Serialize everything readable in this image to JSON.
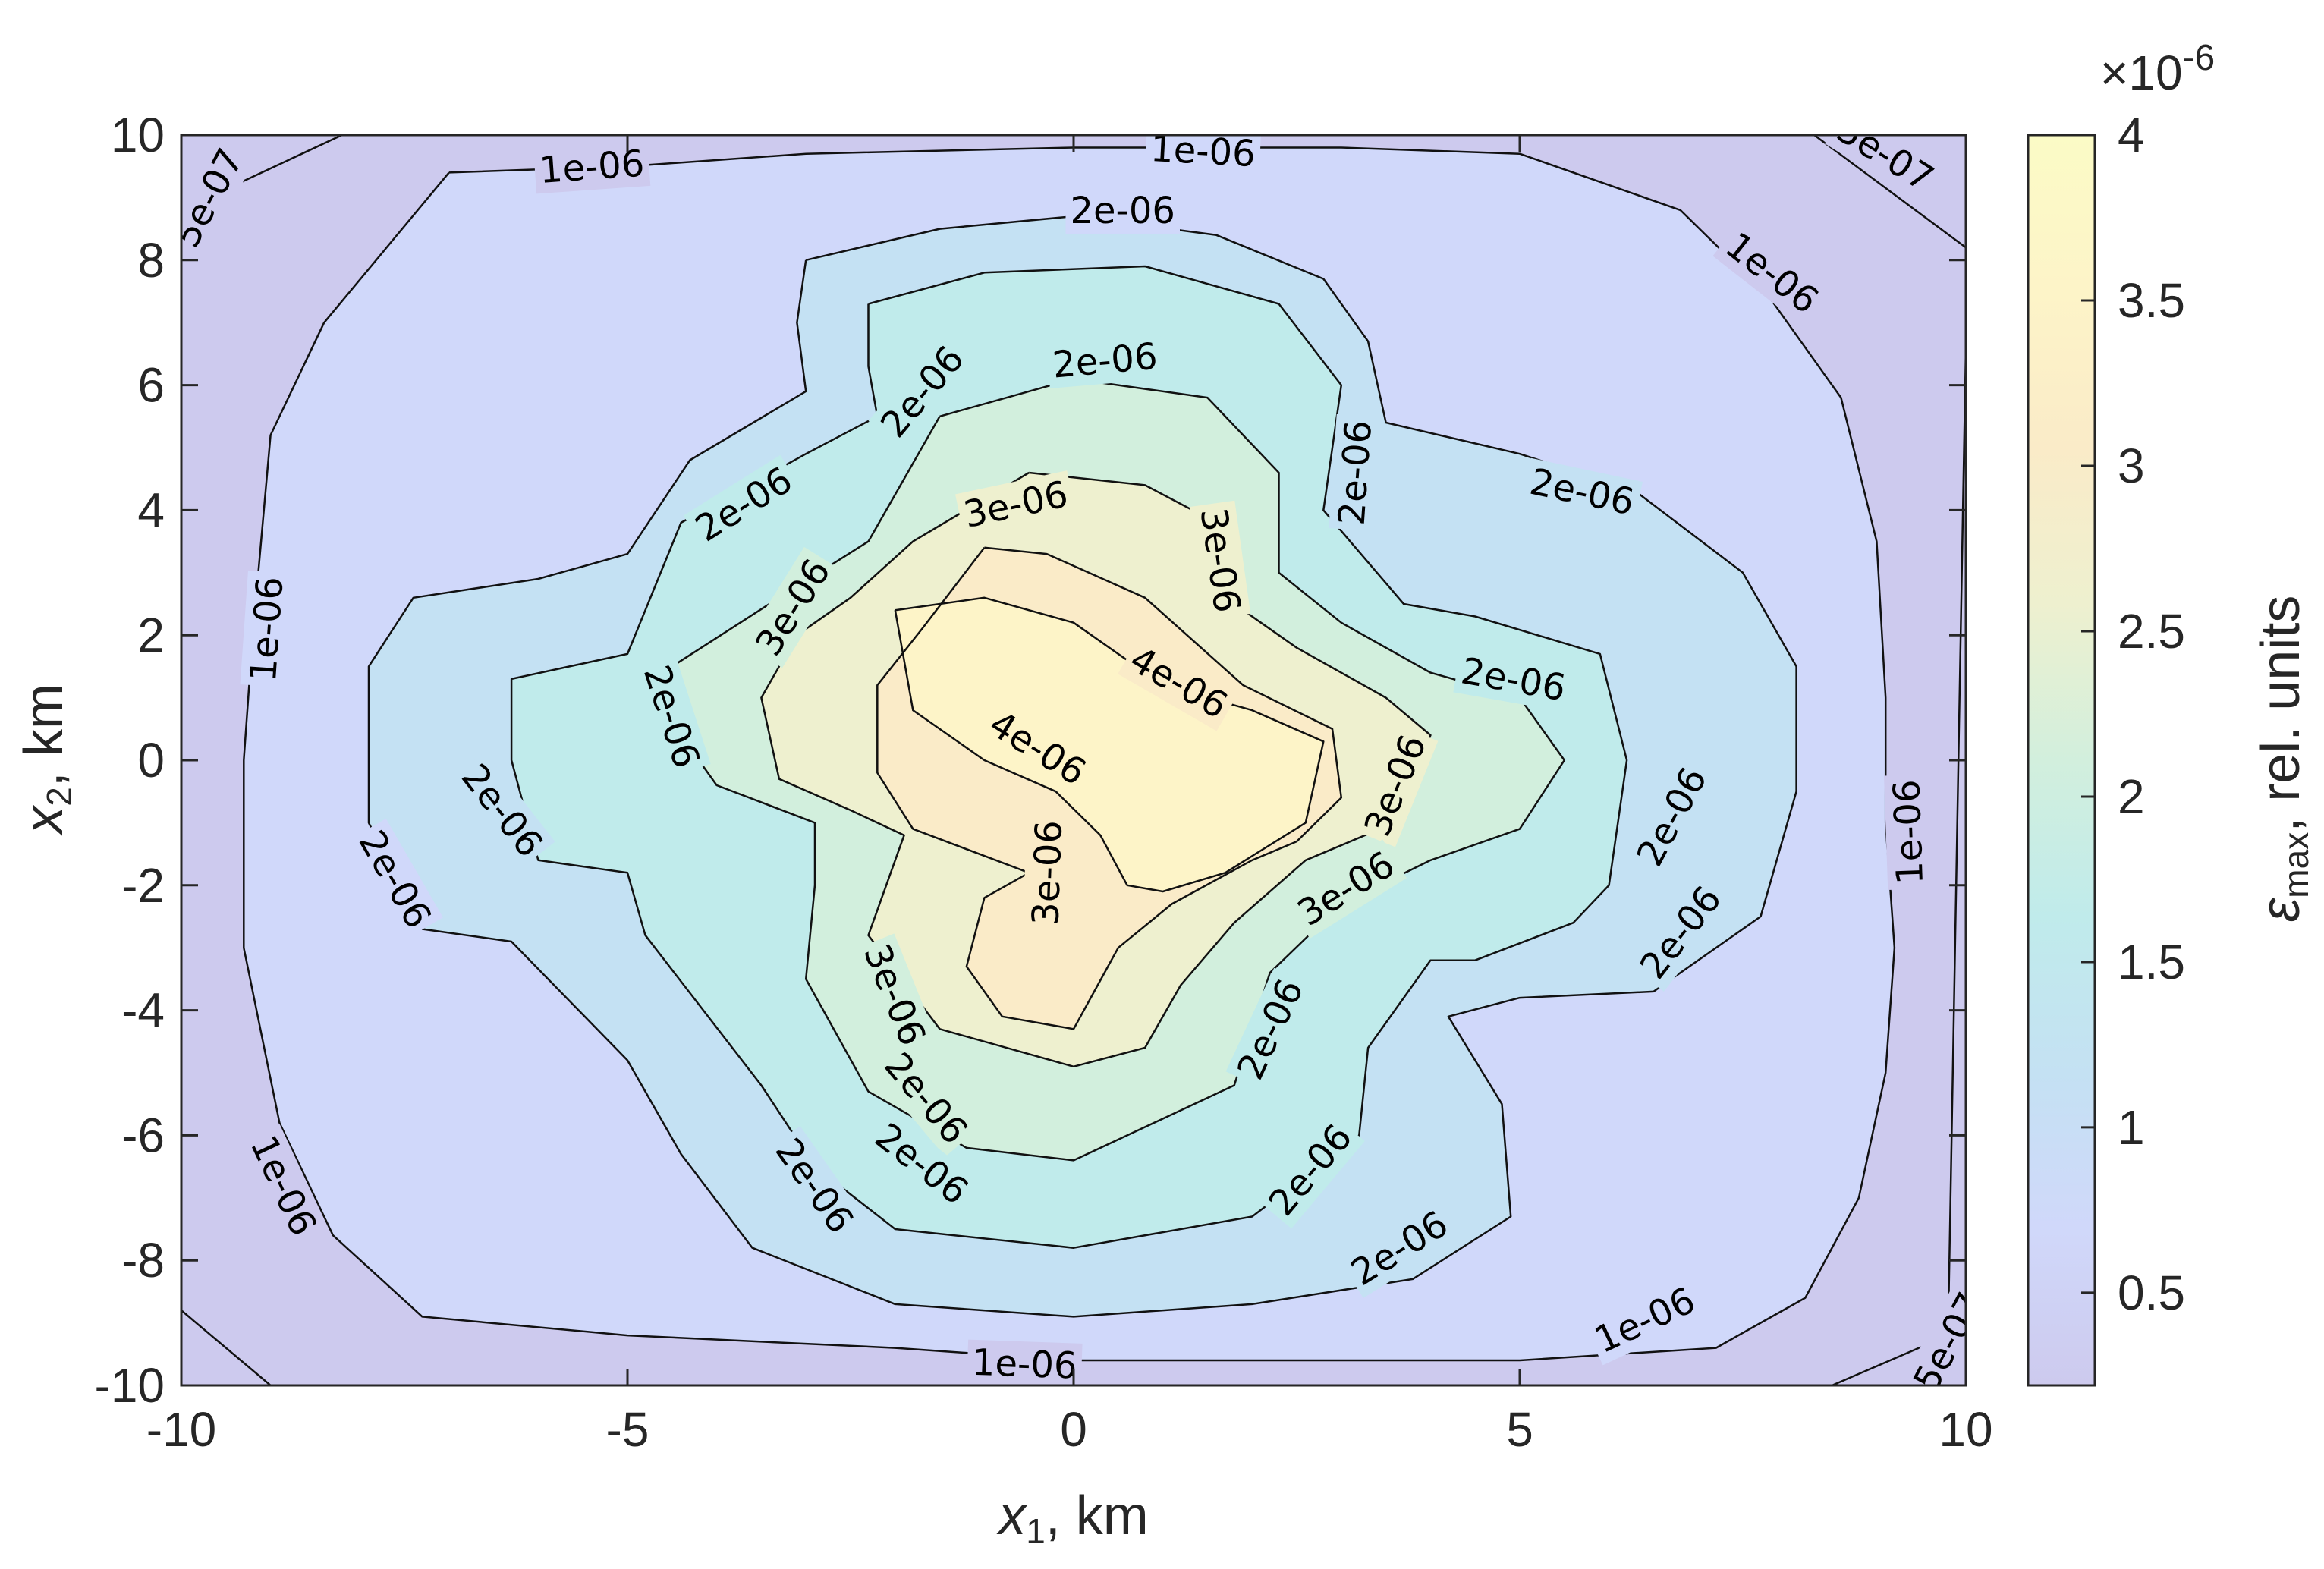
{
  "chart_data": {
    "type": "contour",
    "xlabel": {
      "symbol": "x",
      "sub": "1",
      "unit": ", km"
    },
    "ylabel": {
      "symbol": "x",
      "sub": "2",
      "unit": ", km"
    },
    "xlim": [
      -10,
      10
    ],
    "ylim": [
      -10,
      10
    ],
    "xticks": [
      -10,
      -5,
      0,
      5,
      10
    ],
    "yticks": [
      -10,
      -8,
      -6,
      -4,
      -2,
      0,
      2,
      4,
      6,
      8,
      10
    ],
    "xtick_labels": [
      "-10",
      "-5",
      "0",
      "5",
      "10"
    ],
    "ytick_labels": [
      "-10",
      "-8",
      "-6",
      "-4",
      "-2",
      "0",
      "2",
      "4",
      "6",
      "8",
      "10"
    ],
    "colorbar": {
      "label": {
        "symbol": "ε",
        "sub": "max",
        "unit": ", rel. units"
      },
      "exponent_label": "×10",
      "exponent": "-6",
      "range": [
        0.22,
        4.0
      ],
      "ticks": [
        0.5,
        1,
        1.5,
        2,
        2.5,
        3,
        3.5,
        4
      ],
      "tick_labels": [
        "0.5",
        "1",
        "1.5",
        "2",
        "2.5",
        "3",
        "3.5",
        "4"
      ],
      "colormap": [
        "#cdcaee",
        "#d0d8fa",
        "#c4e1f3",
        "#c0ebeb",
        "#d2efdd",
        "#eef0cf",
        "#faebc8",
        "#fdf4c8",
        "#fbfbc6"
      ]
    },
    "levels": [
      5e-07,
      1e-06,
      1.5e-06,
      2e-06,
      2.5e-06,
      3e-06,
      3.5e-06,
      4e-06
    ],
    "fill_colors": [
      "#d0d8fa",
      "#c4e1f3",
      "#c0ebeb",
      "#d2efdd",
      "#eef0cf",
      "#faebc8",
      "#fdf4c8"
    ],
    "background_color": "#cdcaee",
    "contours": [
      {
        "level": "5e-07",
        "points": [
          [
            -10,
            8.8
          ],
          [
            -8.2,
            10
          ]
        ]
      },
      {
        "level": "5e-07",
        "points": [
          [
            8.3,
            10
          ],
          [
            10,
            8.2
          ]
        ]
      },
      {
        "level": "5e-07",
        "points": [
          [
            10,
            6.6
          ],
          [
            9.8,
            -9.2
          ],
          [
            8.5,
            -10
          ]
        ]
      },
      {
        "level": "5e-07",
        "points": [
          [
            -10,
            -8.8
          ],
          [
            -9,
            -10
          ]
        ]
      },
      {
        "level": "1e-06",
        "points": [
          [
            -7,
            9.4
          ],
          [
            -5,
            9.5
          ],
          [
            -3,
            9.7
          ],
          [
            0,
            9.8
          ],
          [
            3,
            9.8
          ],
          [
            5,
            9.7
          ],
          [
            6.8,
            8.8
          ],
          [
            7.8,
            7.4
          ],
          [
            8.6,
            5.8
          ],
          [
            9,
            3.5
          ],
          [
            9.1,
            1
          ],
          [
            9.1,
            -1
          ],
          [
            9.2,
            -3
          ],
          [
            9.1,
            -5
          ],
          [
            8.8,
            -7
          ],
          [
            8.2,
            -8.6
          ],
          [
            7.2,
            -9.4
          ],
          [
            5,
            -9.6
          ],
          [
            2,
            -9.6
          ],
          [
            0,
            -9.6
          ],
          [
            -2,
            -9.4
          ],
          [
            -5,
            -9.2
          ],
          [
            -7.3,
            -8.9
          ],
          [
            -8.3,
            -7.6
          ],
          [
            -8.9,
            -5.8
          ],
          [
            -9.3,
            -3
          ],
          [
            -9.3,
            0
          ],
          [
            -9.2,
            2
          ],
          [
            -9,
            5.2
          ],
          [
            -8.4,
            7
          ],
          [
            -7,
            9.4
          ]
        ]
      },
      {
        "level": "1.5e-06",
        "points": [
          [
            -3,
            8
          ],
          [
            -1.5,
            8.5
          ],
          [
            0,
            8.7
          ],
          [
            1.6,
            8.4
          ],
          [
            2.8,
            7.7
          ],
          [
            3.3,
            6.7
          ],
          [
            3.5,
            5.4
          ],
          [
            5,
            4.9
          ],
          [
            6.3,
            4.3
          ],
          [
            7.5,
            3
          ],
          [
            8.1,
            1.5
          ],
          [
            8.1,
            -0.5
          ],
          [
            7.7,
            -2.5
          ],
          [
            6.5,
            -3.7
          ],
          [
            5,
            -3.8
          ],
          [
            4.2,
            -4.1
          ],
          [
            4.8,
            -5.5
          ],
          [
            4.9,
            -7.3
          ],
          [
            3.8,
            -8.3
          ],
          [
            2,
            -8.7
          ],
          [
            0,
            -8.9
          ],
          [
            -2,
            -8.7
          ],
          [
            -3.6,
            -7.8
          ],
          [
            -4.4,
            -6.3
          ],
          [
            -5,
            -4.8
          ],
          [
            -6.3,
            -2.9
          ],
          [
            -7.3,
            -2.7
          ],
          [
            -7.9,
            -1
          ],
          [
            -7.9,
            1.5
          ],
          [
            -7.4,
            2.6
          ],
          [
            -6,
            2.9
          ],
          [
            -5,
            3.3
          ],
          [
            -4.3,
            4.8
          ],
          [
            -3,
            5.9
          ],
          [
            -3.1,
            7
          ],
          [
            -3,
            8
          ]
        ]
      },
      {
        "level": "2e-06",
        "points": [
          [
            -2.3,
            7.3
          ],
          [
            -1,
            7.8
          ],
          [
            0.8,
            7.9
          ],
          [
            2.3,
            7.3
          ],
          [
            3,
            6
          ],
          [
            2.8,
            4
          ],
          [
            3.7,
            2.5
          ],
          [
            4.5,
            2.3
          ],
          [
            5.9,
            1.7
          ],
          [
            6.2,
            0
          ],
          [
            6,
            -2
          ],
          [
            5.6,
            -2.6
          ],
          [
            4.5,
            -3.2
          ],
          [
            4,
            -3.2
          ],
          [
            3.3,
            -4.6
          ],
          [
            3.2,
            -6
          ],
          [
            2,
            -7.3
          ],
          [
            0,
            -7.8
          ],
          [
            -2,
            -7.5
          ],
          [
            -2.9,
            -6.5
          ],
          [
            -3.5,
            -5.2
          ],
          [
            -4.8,
            -2.8
          ],
          [
            -5,
            -1.8
          ],
          [
            -6,
            -1.6
          ],
          [
            -6.3,
            0
          ],
          [
            -6.3,
            1.3
          ],
          [
            -5,
            1.7
          ],
          [
            -4.4,
            3.8
          ],
          [
            -3,
            4.9
          ],
          [
            -2.2,
            5.5
          ],
          [
            -2.3,
            6.3
          ],
          [
            -2.3,
            7.3
          ]
        ]
      },
      {
        "level": "2.5e-06",
        "points": [
          [
            -1.5,
            5.5
          ],
          [
            0,
            6.1
          ],
          [
            1.5,
            5.8
          ],
          [
            2.3,
            4.6
          ],
          [
            2.3,
            3
          ],
          [
            3,
            2.2
          ],
          [
            4,
            1.4
          ],
          [
            5,
            1
          ],
          [
            5.5,
            0
          ],
          [
            5,
            -1.1
          ],
          [
            4,
            -1.6
          ],
          [
            3,
            -2.3
          ],
          [
            2.2,
            -3.4
          ],
          [
            1.8,
            -5.2
          ],
          [
            0,
            -6.4
          ],
          [
            -1.2,
            -6.2
          ],
          [
            -2.3,
            -5.3
          ],
          [
            -3,
            -3.5
          ],
          [
            -2.9,
            -2
          ],
          [
            -2.9,
            -1
          ],
          [
            -4,
            -0.4
          ],
          [
            -4.4,
            0.4
          ],
          [
            -4.5,
            1.5
          ],
          [
            -3.3,
            2.6
          ],
          [
            -2.3,
            3.5
          ],
          [
            -1.5,
            5.5
          ]
        ]
      },
      {
        "level": "3e-06",
        "points": [
          [
            -0.5,
            4.6
          ],
          [
            0.8,
            4.4
          ],
          [
            1.6,
            3.8
          ],
          [
            1.8,
            2.5
          ],
          [
            2.5,
            1.8
          ],
          [
            3.5,
            1
          ],
          [
            4,
            0.4
          ],
          [
            3.6,
            -1
          ],
          [
            2.6,
            -1.6
          ],
          [
            1.8,
            -2.6
          ],
          [
            1.2,
            -3.6
          ],
          [
            0.8,
            -4.6
          ],
          [
            0,
            -4.9
          ],
          [
            -1.5,
            -4.3
          ],
          [
            -2.3,
            -2.8
          ],
          [
            -1.9,
            -1.2
          ],
          [
            -2.5,
            -0.8
          ],
          [
            -3.3,
            -0.3
          ],
          [
            -3.5,
            1
          ],
          [
            -3.1,
            2
          ],
          [
            -2.5,
            2.6
          ],
          [
            -1.8,
            3.5
          ],
          [
            -0.5,
            4.6
          ]
        ]
      },
      {
        "level": "3.5e-06",
        "points": [
          [
            -1,
            3.4
          ],
          [
            -0.3,
            3.3
          ],
          [
            0.8,
            2.6
          ],
          [
            1.9,
            1.2
          ],
          [
            2.9,
            0.5
          ],
          [
            3,
            -0.6
          ],
          [
            2.5,
            -1.3
          ],
          [
            2,
            -1.6
          ],
          [
            1.1,
            -2.3
          ],
          [
            0.5,
            -3
          ],
          [
            0,
            -4.3
          ],
          [
            -0.8,
            -4.1
          ],
          [
            -1.2,
            -3.3
          ],
          [
            -1,
            -2.2
          ],
          [
            -0.5,
            -1.8
          ],
          [
            -1.8,
            -1.1
          ],
          [
            -2.2,
            -0.2
          ],
          [
            -2.2,
            1.2
          ],
          [
            -1.7,
            2.1
          ],
          [
            -1,
            3.4
          ]
        ]
      },
      {
        "level": "4e-06",
        "points": [
          [
            -2,
            2.4
          ],
          [
            -1,
            2.6
          ],
          [
            0,
            2.2
          ],
          [
            1,
            1.2
          ],
          [
            2,
            0.8
          ],
          [
            2.8,
            0.3
          ],
          [
            2.6,
            -1
          ],
          [
            1.7,
            -1.8
          ],
          [
            1,
            -2.1
          ],
          [
            0.6,
            -2
          ],
          [
            0.3,
            -1.2
          ],
          [
            -0.2,
            -0.5
          ],
          [
            -1,
            0
          ],
          [
            -1.8,
            0.8
          ],
          [
            -2,
            2.4
          ]
        ]
      }
    ],
    "contour_labels": [
      {
        "text": "5e-07",
        "x": -9.7,
        "y": 9.0,
        "angle": -62
      },
      {
        "text": "5e-07",
        "x": 9.1,
        "y": 9.7,
        "angle": 32
      },
      {
        "text": "5e-07",
        "x": 9.8,
        "y": -9.3,
        "angle": -62
      },
      {
        "text": "1e-06",
        "x": -5.4,
        "y": 9.5,
        "angle": -4
      },
      {
        "text": "1e-06",
        "x": 1.45,
        "y": 9.75,
        "angle": 3
      },
      {
        "text": "1e-06",
        "x": 7.83,
        "y": 7.8,
        "angle": 38
      },
      {
        "text": "1e-06",
        "x": -9.05,
        "y": 2.1,
        "angle": -86
      },
      {
        "text": "1e-06",
        "x": 9.35,
        "y": -1.15,
        "angle": -92
      },
      {
        "text": "1e-06",
        "x": -8.85,
        "y": -6.8,
        "angle": 65
      },
      {
        "text": "1e-06",
        "x": -0.55,
        "y": -9.65,
        "angle": 2
      },
      {
        "text": "1e-06",
        "x": 6.4,
        "y": -8.95,
        "angle": -25
      },
      {
        "text": "2e-06",
        "x": 0.55,
        "y": 8.8,
        "angle": 0
      },
      {
        "text": "2e-06",
        "x": -1.7,
        "y": 5.9,
        "angle": -50
      },
      {
        "text": "2e-06",
        "x": 0.35,
        "y": 6.4,
        "angle": -5
      },
      {
        "text": "2e-06",
        "x": -3.7,
        "y": 4.1,
        "angle": -32
      },
      {
        "text": "2e-06",
        "x": 3.15,
        "y": 4.6,
        "angle": -86
      },
      {
        "text": "2e-06",
        "x": 5.7,
        "y": 4.3,
        "angle": 12
      },
      {
        "text": "2e-06",
        "x": 4.93,
        "y": 1.3,
        "angle": 10
      },
      {
        "text": "2e-06",
        "x": -4.5,
        "y": 0.7,
        "angle": 72
      },
      {
        "text": "2e-06",
        "x": -6.4,
        "y": -0.8,
        "angle": 52
      },
      {
        "text": "2e-06",
        "x": -7.6,
        "y": -1.9,
        "angle": 60
      },
      {
        "text": "2e-06",
        "x": 6.7,
        "y": -0.9,
        "angle": -62
      },
      {
        "text": "2e-06",
        "x": 6.8,
        "y": -2.75,
        "angle": -52
      },
      {
        "text": "2e-06",
        "x": 2.2,
        "y": -4.3,
        "angle": -65
      },
      {
        "text": "2e-06",
        "x": -1.65,
        "y": -5.4,
        "angle": 50
      },
      {
        "text": "2e-06",
        "x": -1.7,
        "y": -6.45,
        "angle": 38
      },
      {
        "text": "2e-06",
        "x": -2.9,
        "y": -6.8,
        "angle": 55
      },
      {
        "text": "2e-06",
        "x": 2.65,
        "y": -6.55,
        "angle": -50
      },
      {
        "text": "2e-06",
        "x": 3.65,
        "y": -7.8,
        "angle": -32
      },
      {
        "text": "3e-06",
        "x": -0.65,
        "y": 4.1,
        "angle": -12
      },
      {
        "text": "3e-06",
        "x": -3.15,
        "y": 2.45,
        "angle": -58
      },
      {
        "text": "3e-06",
        "x": 1.65,
        "y": 3.2,
        "angle": 82
      },
      {
        "text": "3e-06",
        "x": 3.6,
        "y": -0.4,
        "angle": -68
      },
      {
        "text": "3e-06",
        "x": 3.05,
        "y": -2.05,
        "angle": -32
      },
      {
        "text": "3e-06",
        "x": -2.0,
        "y": -3.75,
        "angle": 68
      },
      {
        "text": "3e-06",
        "x": -0.3,
        "y": -1.8,
        "angle": -88
      },
      {
        "text": "4e-06",
        "x": 1.18,
        "y": 1.25,
        "angle": 30
      },
      {
        "text": "4e-06",
        "x": -0.4,
        "y": 0.2,
        "angle": 32
      }
    ]
  }
}
